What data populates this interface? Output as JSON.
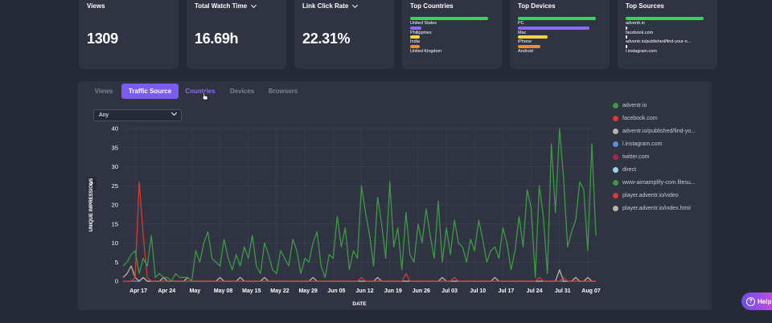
{
  "cards": {
    "views": {
      "title": "Views",
      "value": "1309"
    },
    "watch": {
      "title": "Total Watch Time",
      "value": "16.69h"
    },
    "click": {
      "title": "Link Click Rate",
      "value": "22.31%"
    }
  },
  "top_countries": {
    "title": "Top Countries",
    "items": [
      {
        "label": "United States",
        "pct": 1.0,
        "color": "#3ecf6a"
      },
      {
        "label": "Philippines",
        "pct": 0.14,
        "color": "#8b6bff"
      },
      {
        "label": "India",
        "pct": 0.12,
        "color": "#f5d547"
      },
      {
        "label": "United Kingdom",
        "pct": 0.12,
        "color": "#f28b30"
      }
    ]
  },
  "top_devices": {
    "title": "Top Devices",
    "items": [
      {
        "label": "PC",
        "pct": 1.0,
        "color": "#3ecf6a"
      },
      {
        "label": "Mac",
        "pct": 0.92,
        "color": "#8b6bff"
      },
      {
        "label": "iPhone",
        "pct": 0.38,
        "color": "#f5d547"
      },
      {
        "label": "Android",
        "pct": 0.29,
        "color": "#f28b30"
      }
    ]
  },
  "top_sources": {
    "title": "Top Sources",
    "items": [
      {
        "label": "adventr.io",
        "pct": 1.0,
        "color": "#3ecf6a"
      },
      {
        "label": "facebook.com",
        "pct": 0.02,
        "color": "#ffffff"
      },
      {
        "label": "adventr.io/published/find-your-n...",
        "pct": 0.01,
        "color": "#ffffff"
      },
      {
        "label": "l.instagram.com",
        "pct": 0.01,
        "color": "#ffffff"
      }
    ]
  },
  "tabs": [
    "Views",
    "Traffic Source",
    "Countries",
    "Devices",
    "Browsers"
  ],
  "filter": {
    "selected": "Any"
  },
  "legend": [
    {
      "label": "adventr.io",
      "color": "#3e9a45"
    },
    {
      "label": "facebook.com",
      "color": "#d63b2f"
    },
    {
      "label": "adventr.io/published/find-yo...",
      "color": "#b9b3ab"
    },
    {
      "label": "l.instagram.com",
      "color": "#5b8fd8"
    },
    {
      "label": "twitter.com",
      "color": "#a5264a"
    },
    {
      "label": "direct",
      "color": "#9fd3ee"
    },
    {
      "label": "www-aimamplify-com.filesu...",
      "color": "#3e9a45"
    },
    {
      "label": "player.adventr.io/video",
      "color": "#d63b2f"
    },
    {
      "label": "player.adventr.io/index.html",
      "color": "#b9b3ab"
    }
  ],
  "help": {
    "label": "Help"
  },
  "chart_data": {
    "type": "line",
    "xlabel": "DATE",
    "ylabel": "UNIQUE IMPRESSIONS",
    "ylim": [
      0,
      40
    ],
    "yticks": [
      0,
      5,
      10,
      15,
      20,
      25,
      30,
      35,
      40
    ],
    "xticks": [
      {
        "label": "Apr 17",
        "day": 3
      },
      {
        "label": "Apr 24",
        "day": 10
      },
      {
        "label": "May",
        "day": 17
      },
      {
        "label": "May 08",
        "day": 24
      },
      {
        "label": "May 15",
        "day": 31
      },
      {
        "label": "May 22",
        "day": 38
      },
      {
        "label": "May 29",
        "day": 45
      },
      {
        "label": "Jun 05",
        "day": 52
      },
      {
        "label": "Jun 12",
        "day": 59
      },
      {
        "label": "Jun 19",
        "day": 66
      },
      {
        "label": "Jun 26",
        "day": 73
      },
      {
        "label": "Jul 03",
        "day": 80
      },
      {
        "label": "Jul 10",
        "day": 87
      },
      {
        "label": "Jul 17",
        "day": 94
      },
      {
        "label": "Jul 24",
        "day": 101
      },
      {
        "label": "Jul 31",
        "day": 108
      },
      {
        "label": "Aug 07",
        "day": 115
      }
    ],
    "x_days": 118,
    "series": [
      {
        "name": "adventr.io",
        "color": "#3e9a45",
        "values": [
          4,
          5,
          7,
          8,
          2,
          6,
          4,
          12,
          1,
          2,
          1,
          1,
          0,
          2,
          1,
          1,
          1,
          0,
          8,
          5,
          10,
          13,
          6,
          5,
          4,
          11,
          6,
          3,
          7,
          4,
          9,
          6,
          12,
          4,
          2,
          10,
          7,
          3,
          2,
          8,
          6,
          4,
          11,
          8,
          2,
          6,
          5,
          10,
          13,
          4,
          1,
          7,
          6,
          17,
          9,
          14,
          3,
          8,
          6,
          25,
          18,
          12,
          4,
          22,
          15,
          6,
          26,
          9,
          14,
          3,
          18,
          7,
          5,
          15,
          10,
          19,
          12,
          6,
          21,
          5,
          14,
          7,
          16,
          10,
          9,
          5,
          11,
          8,
          16,
          11,
          5,
          8,
          9,
          6,
          14,
          10,
          3,
          8,
          17,
          9,
          24,
          19,
          1,
          25,
          17,
          2,
          36,
          18,
          40,
          27,
          9,
          13,
          16,
          26,
          24,
          8,
          36,
          12
        ]
      },
      {
        "name": "facebook.com",
        "color": "#d63b2f",
        "values": [
          0,
          0,
          0,
          1,
          26,
          12,
          1,
          0,
          0,
          0,
          0,
          0,
          0,
          0,
          0,
          0,
          0,
          0,
          0,
          0,
          0,
          0,
          0,
          0,
          0,
          0,
          0,
          0,
          0,
          0,
          0,
          0,
          0,
          0,
          0,
          0,
          0,
          0,
          0,
          0,
          0,
          0,
          0,
          0,
          0,
          0,
          0,
          0,
          0,
          0,
          0,
          0,
          0,
          0,
          0,
          0,
          0,
          0,
          0,
          1,
          0,
          0,
          0,
          0,
          0,
          0,
          0,
          0,
          0,
          0,
          2,
          0,
          0,
          0,
          0,
          0,
          0,
          0,
          0,
          0,
          0,
          0,
          1,
          0,
          0,
          0,
          0,
          0,
          0,
          0,
          0,
          0,
          0,
          0,
          0,
          0,
          0,
          0,
          0,
          0,
          0,
          0,
          0,
          1,
          0,
          0,
          0,
          0,
          0,
          1,
          0,
          0,
          0,
          0,
          0,
          0,
          0,
          0
        ]
      },
      {
        "name": "adventr.io/published/find-yo...",
        "color": "#b9b3ab",
        "values": [
          1,
          2,
          4,
          1,
          0,
          1,
          0,
          0,
          0,
          0,
          1,
          0,
          0,
          0,
          0,
          0,
          1,
          0,
          0,
          0,
          0,
          0,
          0,
          0,
          1,
          0,
          0,
          0,
          0,
          1,
          0,
          0,
          0,
          0,
          0,
          1,
          0,
          0,
          0,
          0,
          0,
          0,
          0,
          0,
          0,
          0,
          0,
          1,
          0,
          0,
          0,
          0,
          0,
          0,
          0,
          0,
          0,
          0,
          0,
          0,
          0,
          0,
          0,
          1,
          0,
          0,
          0,
          0,
          0,
          0,
          0,
          0,
          0,
          0,
          0,
          0,
          0,
          0,
          0,
          1,
          0,
          0,
          0,
          0,
          0,
          0,
          0,
          0,
          0,
          0,
          0,
          0,
          1,
          0,
          0,
          0,
          0,
          0,
          0,
          0,
          0,
          0,
          0,
          0,
          0,
          0,
          0,
          0,
          3,
          0,
          0,
          0,
          1,
          0,
          0,
          1,
          0,
          0
        ]
      },
      {
        "name": "l.instagram.com",
        "color": "#5b8fd8",
        "values": [
          0,
          0,
          0,
          0,
          0,
          1,
          0,
          0,
          0,
          0,
          0,
          0,
          0,
          0,
          0,
          0,
          0,
          0,
          0,
          0,
          0,
          0,
          0,
          0,
          0,
          0,
          0,
          0,
          0,
          0,
          0,
          0,
          0,
          0,
          0,
          0,
          0,
          0,
          0,
          0,
          0,
          0,
          0,
          0,
          0,
          0,
          0,
          0,
          0,
          0,
          0,
          0,
          0,
          0,
          0,
          0,
          0,
          0,
          0,
          0,
          0,
          0,
          0,
          0,
          0,
          0,
          0,
          0,
          0,
          0,
          0,
          0,
          0,
          0,
          0,
          0,
          0,
          0,
          0,
          0,
          0,
          0,
          0,
          0,
          0,
          0,
          0,
          0,
          0,
          0,
          0,
          0,
          0,
          0,
          0,
          0,
          0,
          0,
          0,
          0,
          0,
          0,
          0,
          0,
          0,
          0,
          0,
          0,
          0,
          0,
          0,
          0,
          0,
          0,
          0,
          0,
          0,
          0
        ]
      }
    ]
  }
}
